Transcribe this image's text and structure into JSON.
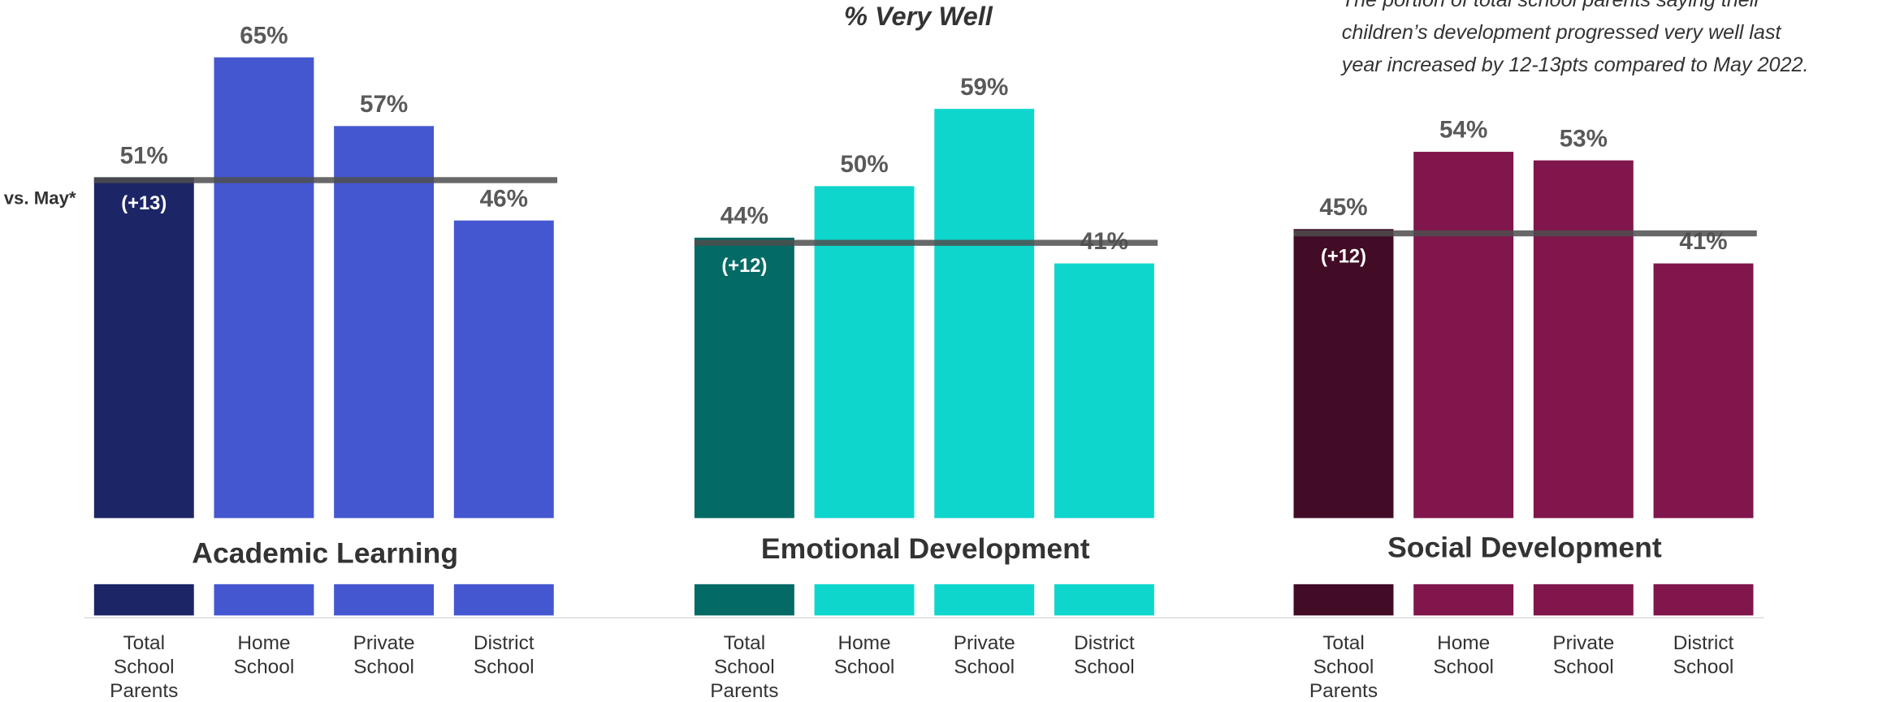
{
  "header": {
    "title": "% Very Well",
    "note": [
      "The portion of total school parents saying their",
      "children’s development progressed very well last",
      "year increased by 12-13pts compared to May 2022."
    ],
    "row_label": "vs. May*"
  },
  "chart_data": [
    {
      "type": "bar",
      "title": "Academic Learning",
      "categories": [
        "Total School Parents",
        "Home School",
        "Private School",
        "District School"
      ],
      "values": [
        51,
        65,
        57,
        46
      ],
      "value_labels": [
        "51%",
        "65%",
        "57%",
        "46%"
      ],
      "colors": [
        "#1c2566",
        "#4557d0",
        "#4557d0",
        "#4557d0"
      ],
      "reference_line": 50.7,
      "annotations": [
        "(+13)"
      ],
      "ylim": [
        0,
        70
      ]
    },
    {
      "type": "bar",
      "title": "Emotional Development",
      "categories": [
        "Total School Parents",
        "Home School",
        "Private School",
        "District School"
      ],
      "values": [
        44,
        50,
        59,
        41
      ],
      "value_labels": [
        "44%",
        "50%",
        "59%",
        "41%"
      ],
      "colors": [
        "#046a65",
        "#0fd6cc",
        "#0fd6cc",
        "#0fd6cc"
      ],
      "reference_line": 43.4,
      "annotations": [
        "(+12)"
      ],
      "ylim": [
        0,
        70
      ]
    },
    {
      "type": "bar",
      "title": "Social Development",
      "categories": [
        "Total School Parents",
        "Home School",
        "Private School",
        "District School"
      ],
      "values": [
        45,
        54,
        53,
        41
      ],
      "value_labels": [
        "45%",
        "54%",
        "53%",
        "41%"
      ],
      "colors": [
        "#420c27",
        "#80164b",
        "#80164b",
        "#80164b"
      ],
      "reference_line": 44.5,
      "annotations": [
        "(+12)"
      ],
      "ylim": [
        0,
        70
      ]
    }
  ]
}
